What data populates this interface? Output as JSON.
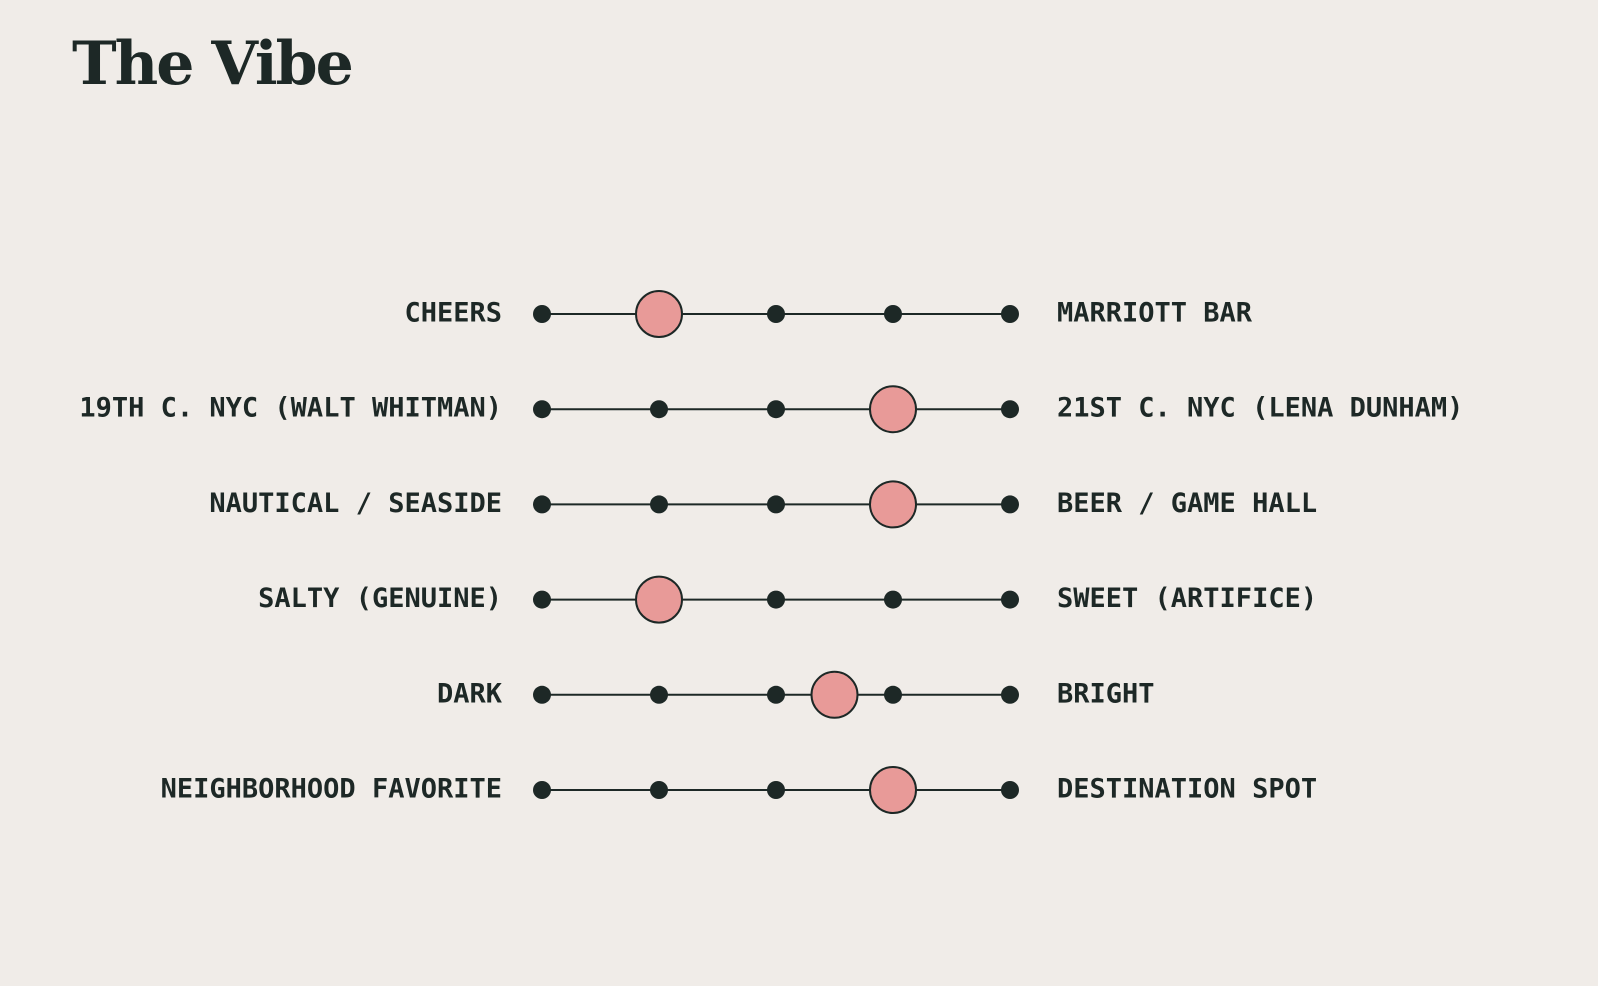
{
  "chart_data": {
    "type": "scale",
    "title": "The Vibe",
    "left_labels": [
      "CHEERS",
      "19TH C. NYC (WALT WHITMAN)",
      "NAUTICAL / SEASIDE",
      "SALTY (GENUINE)",
      "DARK",
      "NEIGHBORHOOD FAVORITE"
    ],
    "right_labels": [
      "MARRIOTT BAR",
      "21ST C. NYC (LENA DUNHAM)",
      "BEER / GAME HALL",
      "SWEET (ARTIFICE)",
      "BRIGHT",
      "DESTINATION SPOT"
    ],
    "values": [
      1,
      3,
      3,
      1,
      2.5,
      3
    ],
    "xlim": [
      0,
      4
    ],
    "xticks": [
      0,
      1,
      2,
      3,
      4
    ],
    "color": "#e89a98"
  }
}
